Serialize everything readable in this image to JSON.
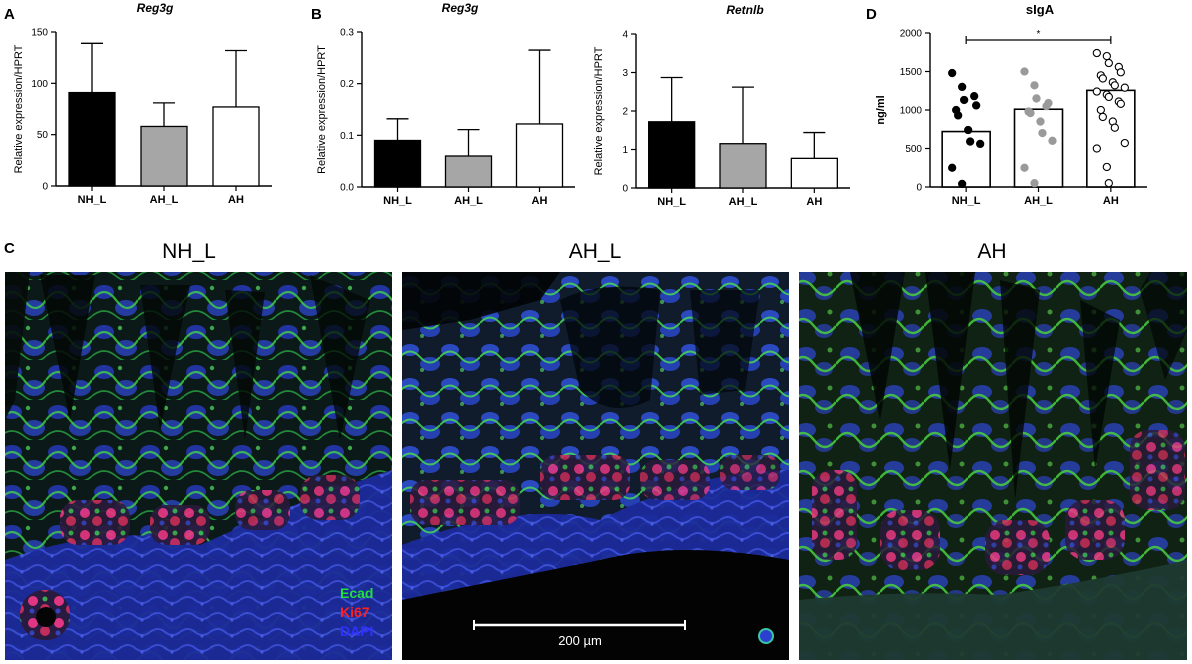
{
  "panel_labels": {
    "a": "A",
    "b": "B",
    "c": "C",
    "d": "D"
  },
  "chart_data": [
    {
      "type": "bar",
      "panel": "A",
      "title": "Reg3g",
      "ylabel": "Relative expression/HPRT",
      "categories": [
        "NH_L",
        "AH_L",
        "AH"
      ],
      "values": [
        91,
        58,
        77
      ],
      "errors": [
        48,
        23,
        55
      ],
      "fills": [
        "#000000",
        "#a6a6a6",
        "#ffffff"
      ],
      "ylim": [
        0,
        150
      ],
      "yticks": [
        0,
        50,
        100,
        150
      ],
      "ytick_labels": [
        "0",
        "50",
        "100",
        "150"
      ]
    },
    {
      "type": "bar",
      "panel": "B",
      "title": "Reg3g",
      "ylabel": "Relative expression/HPRT",
      "categories": [
        "NH_L",
        "AH_L",
        "AH"
      ],
      "values": [
        0.09,
        0.06,
        0.122
      ],
      "errors": [
        0.042,
        0.051,
        0.143
      ],
      "fills": [
        "#000000",
        "#a6a6a6",
        "#ffffff"
      ],
      "ylim": [
        0,
        0.3
      ],
      "yticks": [
        0,
        0.1,
        0.2,
        0.3
      ],
      "ytick_labels": [
        "0.0",
        "0.1",
        "0.2",
        "0.3"
      ]
    },
    {
      "type": "bar",
      "panel": "B",
      "title": "Retnlb",
      "ylabel": "Relative expression/HPRT",
      "categories": [
        "NH_L",
        "AH_L",
        "AH"
      ],
      "values": [
        1.72,
        1.15,
        0.77
      ],
      "errors": [
        1.15,
        1.47,
        0.67
      ],
      "fills": [
        "#000000",
        "#a6a6a6",
        "#ffffff"
      ],
      "ylim": [
        0,
        4
      ],
      "yticks": [
        0,
        1,
        2,
        3,
        4
      ],
      "ytick_labels": [
        "0",
        "1",
        "2",
        "3",
        "4"
      ]
    },
    {
      "type": "scatter",
      "panel": "D",
      "title": "sIgA",
      "ylabel": "ng/ml",
      "categories": [
        "NH_L",
        "AH_L",
        "AH"
      ],
      "bar_values": [
        720,
        1010,
        1255
      ],
      "bar_fill": "#ffffff",
      "points": [
        [
          1480,
          1300,
          1130,
          1180,
          1060,
          1000,
          930,
          740,
          590,
          560,
          250,
          40
        ],
        [
          1500,
          1320,
          1150,
          1050,
          1090,
          980,
          960,
          850,
          700,
          600,
          250,
          50
        ],
        [
          1740,
          1700,
          1610,
          1560,
          1490,
          1450,
          1410,
          1360,
          1320,
          1290,
          1240,
          1200,
          1170,
          1110,
          1080,
          1000,
          910,
          850,
          770,
          570,
          500,
          260,
          50
        ]
      ],
      "point_fills": [
        "#000000",
        "#9a9a9a",
        "#ffffff"
      ],
      "ylim": [
        0,
        2000
      ],
      "yticks": [
        0,
        500,
        1000,
        1500,
        2000
      ],
      "ytick_labels": [
        "0",
        "500",
        "1000",
        "1500",
        "2000"
      ],
      "significance": "*"
    }
  ],
  "micrographs": [
    {
      "title": "NH_L"
    },
    {
      "title": "AH_L"
    },
    {
      "title": "AH"
    }
  ],
  "legend": {
    "ecad": "Ecad",
    "ki67": "Ki67",
    "dapi": "DAPI",
    "colors": {
      "ecad": "#22e03a",
      "ki67": "#ff2020",
      "dapi": "#3030ff"
    }
  },
  "scale_bar": {
    "label": "200 µm"
  }
}
